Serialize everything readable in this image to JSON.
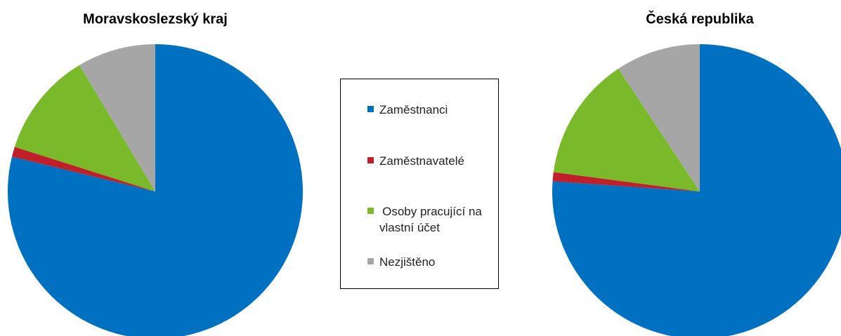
{
  "chart_data": [
    {
      "type": "pie",
      "title": "Moravskoslezský kraj",
      "categories": [
        "Zaměstnanci",
        "Zaměstnavatelé",
        "Osoby pracující na vlastní účet",
        "Nezjištěno"
      ],
      "values": [
        78.8,
        1.1,
        11.5,
        8.6
      ],
      "colors": [
        "#0070c0",
        "#c0202a",
        "#7ab929",
        "#a6a6a6"
      ]
    },
    {
      "type": "pie",
      "title": "Česká republika",
      "categories": [
        "Zaměstnanci",
        "Zaměstnavatelé",
        "Osoby pracující na vlastní účet",
        "Nezjištěno"
      ],
      "values": [
        76.1,
        1.0,
        13.6,
        9.3
      ],
      "colors": [
        "#0070c0",
        "#c0202a",
        "#7ab929",
        "#a6a6a6"
      ]
    }
  ]
}
